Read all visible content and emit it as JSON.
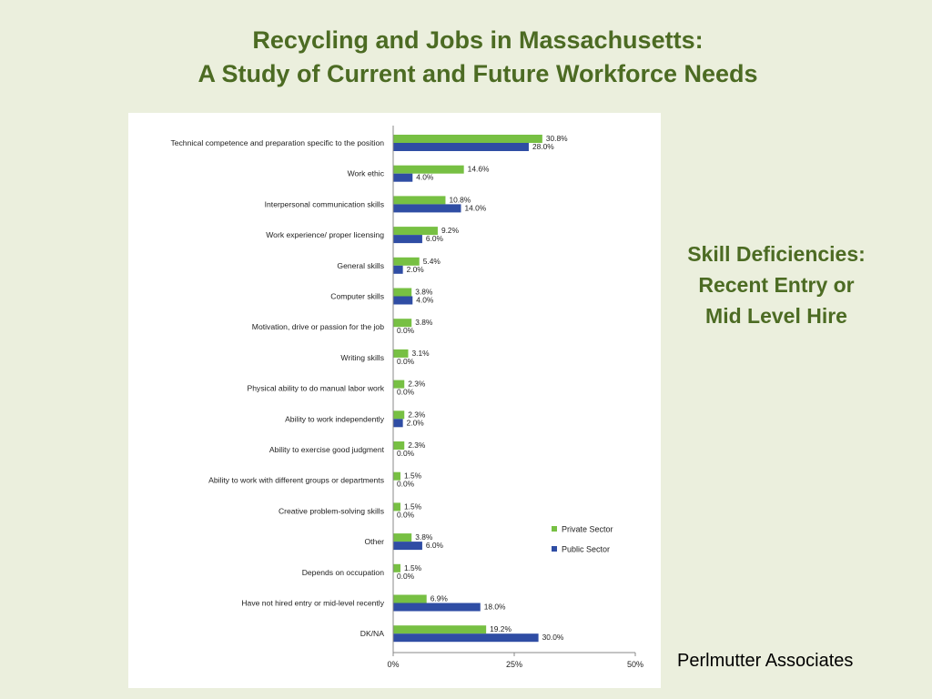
{
  "slide": {
    "title_line1": "Recycling and Jobs in Massachusetts:",
    "title_line2": "A Study of Current and Future Workforce Needs",
    "side_title_line1": "Skill Deficiencies:",
    "side_title_line2": "Recent Entry or",
    "side_title_line3": "Mid Level Hire",
    "credit": "Perlmutter Associates"
  },
  "chart_data": {
    "type": "bar",
    "orientation": "horizontal",
    "categories": [
      "Technical competence and preparation specific to the position",
      "Work ethic",
      "Interpersonal communication skills",
      "Work experience/ proper licensing",
      "General skills",
      "Computer skills",
      "Motivation, drive or passion for the job",
      "Writing skills",
      "Physical ability to do manual labor work",
      "Ability to work independently",
      "Ability to exercise good judgment",
      "Ability to work with different groups or departments",
      "Creative problem-solving skills",
      "Other",
      "Depends on occupation",
      "Have not hired entry or mid-level recently",
      "DK/NA"
    ],
    "series": [
      {
        "name": "Private Sector",
        "color": "#77c043",
        "values": [
          30.8,
          14.6,
          10.8,
          9.2,
          5.4,
          3.8,
          3.8,
          3.1,
          2.3,
          2.3,
          2.3,
          1.5,
          1.5,
          3.8,
          1.5,
          6.9,
          19.2
        ],
        "labels": [
          "30.8%",
          "14.6%",
          "10.8%",
          "9.2%",
          "5.4%",
          "3.8%",
          "3.8%",
          "3.1%",
          "2.3%",
          "2.3%",
          "2.3%",
          "1.5%",
          "1.5%",
          "3.8%",
          "1.5%",
          "6.9%",
          "19.2%"
        ]
      },
      {
        "name": "Public Sector",
        "color": "#2f4da4",
        "values": [
          28.0,
          4.0,
          14.0,
          6.0,
          2.0,
          4.0,
          0.0,
          0.0,
          0.0,
          2.0,
          0.0,
          0.0,
          0.0,
          6.0,
          0.0,
          18.0,
          30.0
        ],
        "labels": [
          "28.0%",
          "4.0%",
          "14.0%",
          "6.0%",
          "2.0%",
          "4.0%",
          "0.0%",
          "0.0%",
          "0.0%",
          "2.0%",
          "0.0%",
          "0.0%",
          "0.0%",
          "6.0%",
          "0.0%",
          "18.0%",
          "30.0%"
        ]
      }
    ],
    "xlim": [
      0,
      50
    ],
    "xticks": [
      "0%",
      "25%",
      "50%"
    ],
    "legend_position": "bottom-right",
    "grid": false
  }
}
